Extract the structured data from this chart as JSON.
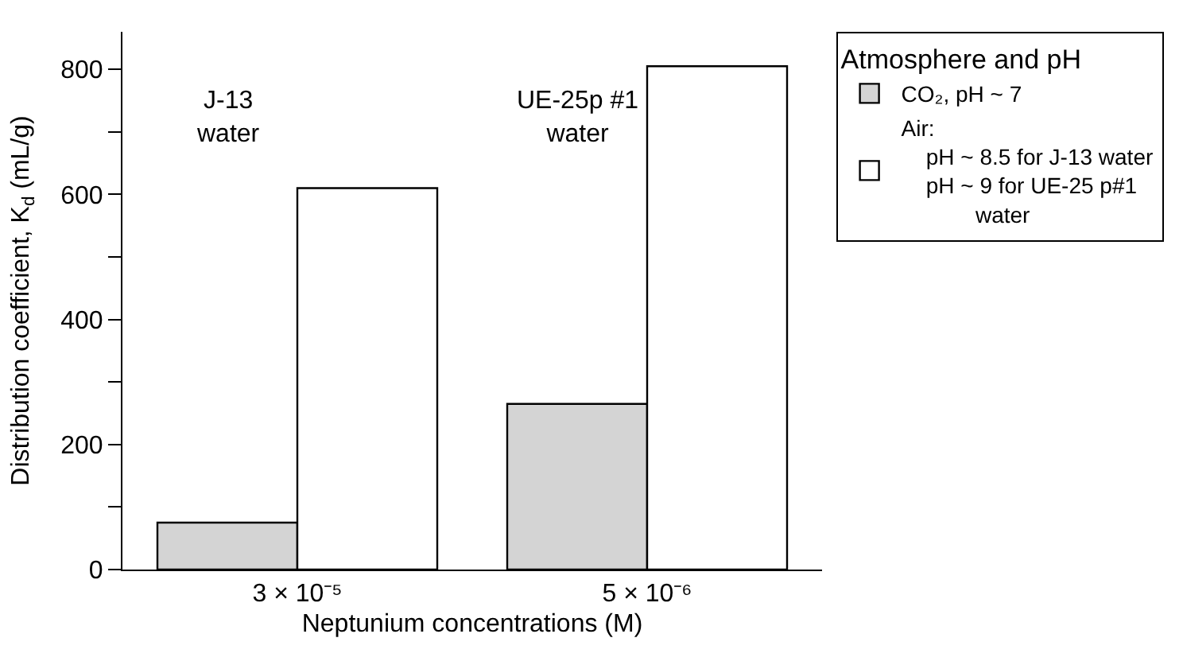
{
  "chart_data": {
    "type": "bar",
    "categories": [
      "3 × 10⁻⁵",
      "5 × 10⁻⁶"
    ],
    "series": [
      {
        "name": "CO₂, pH ~ 7",
        "color": "#d4d4d4",
        "values": [
          75,
          265
        ]
      },
      {
        "name": "Air:\n    pH ~ 8.5 for J-13 water\n    pH ~ 9 for UE-25 p#1\n            water",
        "color": "#ffffff",
        "values": [
          610,
          805
        ]
      }
    ],
    "xlabel": "Neptunium concentrations (M)",
    "ylabel": "Distribution coefficient, K$_{d}$ (mL/g)",
    "legend_title": "Atmosphere and pH",
    "legend": "right",
    "annotations": [
      "J-13\nwater",
      "UE-25p #1\nwater"
    ],
    "ylim": [
      0,
      860
    ],
    "yticks": [
      0,
      {
        "value": 100,
        "label": null
      },
      200,
      {
        "value": 300,
        "label": null
      },
      400,
      {
        "value": 500,
        "label": null
      },
      600,
      {
        "value": 700,
        "label": null
      },
      800
    ]
  }
}
